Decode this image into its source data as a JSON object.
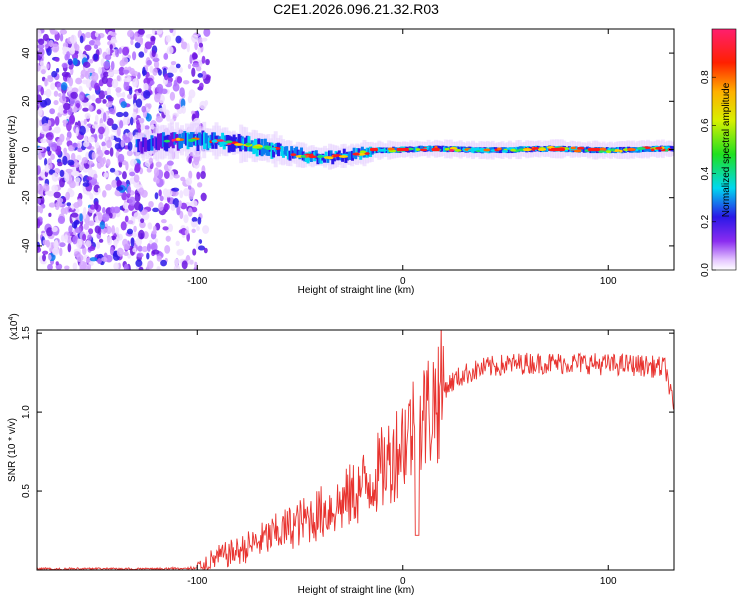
{
  "chart_data": [
    {
      "type": "heatmap",
      "title": "C2E1.2026.096.21.32.R03",
      "xlabel": "Height of straight line (km)",
      "ylabel": "Frequency (Hz)",
      "xlim": [
        -178,
        132
      ],
      "ylim": [
        -50,
        50
      ],
      "xticks": [
        -100,
        0,
        100
      ],
      "xtick_labels": [
        "-100",
        "0",
        "100"
      ],
      "yticks": [
        40,
        20,
        0,
        -20,
        -40
      ],
      "ytick_labels": [
        "40",
        "20",
        "0",
        "-20",
        "-40"
      ],
      "colorbar": {
        "label": "Normalized spectral amplitude",
        "range": [
          0,
          1
        ],
        "ticks": [
          0.0,
          0.2,
          0.4,
          0.6,
          0.8
        ],
        "tick_labels": [
          "0.0",
          "0.2",
          "0.4",
          "0.6",
          "0.8"
        ],
        "colormap": "rainbow (white-purple-blue-cyan-green-yellow-red-magenta)"
      },
      "description_of_content": {
        "noise_region_km": [
          -178,
          -105
        ],
        "signal_band_center_hz": 0,
        "signal_start_km": -130
      }
    },
    {
      "type": "line",
      "xlabel": "Height of straight line (km)",
      "ylabel": "SNR (10 * v/v)",
      "multiplier_label": "(x10",
      "multiplier_exponent": "4",
      "multiplier_suffix": ")",
      "xlim": [
        -178,
        132
      ],
      "ylim": [
        0,
        1.52
      ],
      "xticks": [
        -100,
        0,
        100
      ],
      "xtick_labels": [
        "-100",
        "0",
        "100"
      ],
      "yticks": [
        0.5,
        1.0,
        1.5
      ],
      "ytick_labels": [
        "0.5",
        "1.0",
        "1.5"
      ],
      "series": [
        {
          "name": "SNR",
          "color": "#e8332f",
          "x": [
            -178,
            -150,
            -120,
            -100,
            -95,
            -90,
            -80,
            -70,
            -60,
            -50,
            -40,
            -30,
            -20,
            -10,
            -5,
            0,
            5,
            10,
            15,
            20,
            25,
            30,
            40,
            50,
            60,
            70,
            80,
            90,
            100,
            110,
            120,
            128,
            132
          ],
          "y": [
            0.0,
            0.0,
            0.0,
            0.01,
            0.05,
            0.08,
            0.12,
            0.18,
            0.24,
            0.3,
            0.36,
            0.42,
            0.52,
            0.64,
            0.72,
            0.82,
            0.9,
            0.96,
            1.06,
            1.15,
            1.2,
            1.24,
            1.28,
            1.3,
            1.31,
            1.31,
            1.31,
            1.31,
            1.3,
            1.3,
            1.29,
            1.28,
            1.0
          ]
        }
      ]
    }
  ],
  "colors": {
    "series": "#e8332f",
    "frame": "#000000"
  }
}
